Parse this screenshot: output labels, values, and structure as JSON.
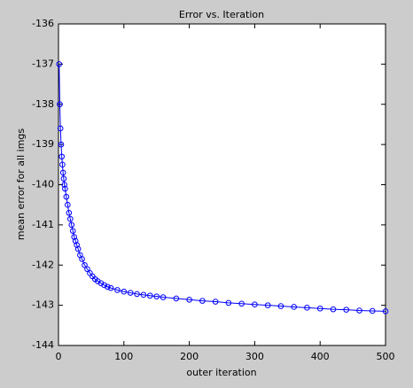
{
  "chart_data": {
    "type": "line",
    "title": "Error vs. Iteration",
    "x_label": "outer iteration",
    "y_label": "mean error for all imgs",
    "x": [
      1,
      2,
      3,
      4,
      5,
      6,
      7,
      8,
      9,
      10,
      12,
      14,
      16,
      18,
      20,
      22,
      24,
      26,
      28,
      30,
      33,
      36,
      40,
      44,
      48,
      52,
      56,
      60,
      65,
      70,
      75,
      80,
      90,
      100,
      110,
      120,
      130,
      140,
      150,
      160,
      180,
      200,
      220,
      240,
      260,
      280,
      300,
      320,
      340,
      360,
      380,
      400,
      420,
      440,
      460,
      480,
      500
    ],
    "values": [
      -137.0,
      -138.0,
      -138.6,
      -139.0,
      -139.3,
      -139.5,
      -139.7,
      -139.85,
      -140.0,
      -140.1,
      -140.3,
      -140.5,
      -140.7,
      -140.85,
      -141.0,
      -141.15,
      -141.3,
      -141.4,
      -141.5,
      -141.6,
      -141.75,
      -141.85,
      -142.0,
      -142.1,
      -142.2,
      -142.28,
      -142.35,
      -142.4,
      -142.45,
      -142.5,
      -142.54,
      -142.57,
      -142.62,
      -142.66,
      -142.69,
      -142.72,
      -142.74,
      -142.76,
      -142.78,
      -142.8,
      -142.83,
      -142.86,
      -142.89,
      -142.91,
      -142.94,
      -142.96,
      -142.98,
      -143.0,
      -143.02,
      -143.04,
      -143.06,
      -143.08,
      -143.1,
      -143.11,
      -143.13,
      -143.14,
      -143.15
    ],
    "color": "#0000ff",
    "marker": "circle",
    "xlim": [
      0,
      500
    ],
    "xticks": [
      0,
      100,
      200,
      300,
      400,
      500
    ],
    "ylim": [
      -144,
      -136
    ],
    "yticks": [
      -136,
      -137,
      -138,
      -139,
      -140,
      -141,
      -142,
      -143,
      -144
    ],
    "grid": false
  }
}
